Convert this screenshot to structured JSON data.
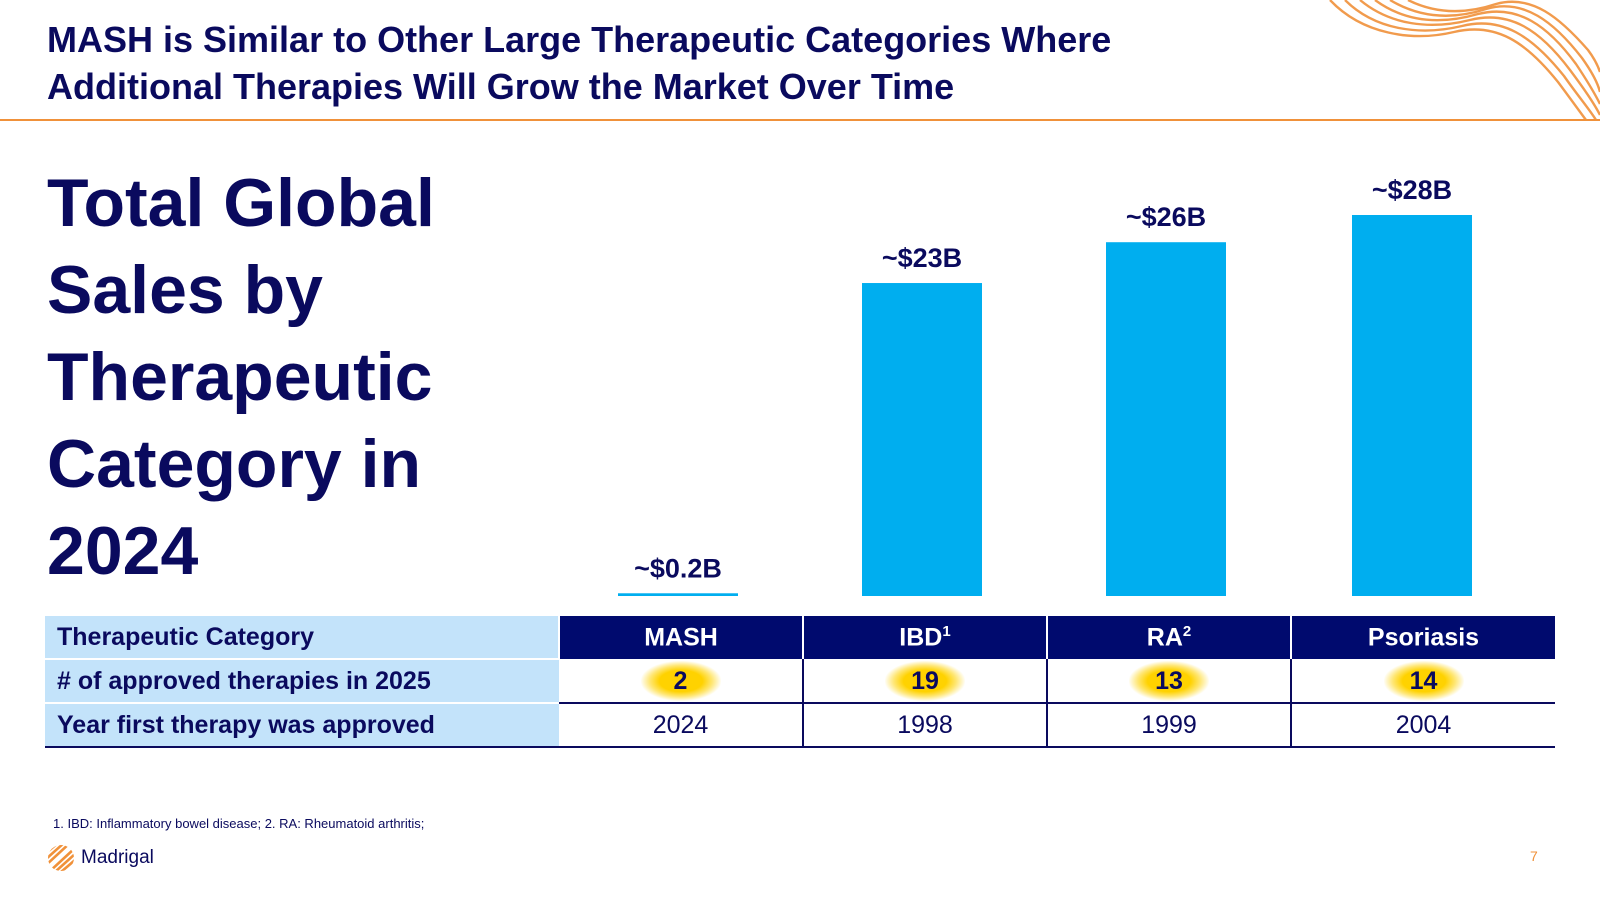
{
  "header": {
    "title": "MASH is Similar to Other Large Therapeutic Categories Where Additional Therapies Will Grow the Market Over Time"
  },
  "main_title": "Total Global Sales by Therapeutic Category in 2024",
  "chart_data": {
    "type": "bar",
    "title": "Total Global Sales by Therapeutic Category in 2024",
    "categories": [
      "MASH",
      "IBD",
      "RA",
      "Psoriasis"
    ],
    "values": [
      0.2,
      23,
      26,
      28
    ],
    "data_labels": [
      "~$0.2B",
      "~$23B",
      "~$26B",
      "~$28B"
    ],
    "unit": "$B",
    "ylim": [
      0,
      28
    ],
    "grid": false,
    "bar_color": "#00aeef"
  },
  "table": {
    "header_label": "Therapeutic Category",
    "columns": [
      {
        "name": "MASH",
        "sup": ""
      },
      {
        "name": "IBD",
        "sup": "1"
      },
      {
        "name": "RA",
        "sup": "2"
      },
      {
        "name": "Psoriasis",
        "sup": ""
      }
    ],
    "rows": [
      {
        "label": "# of approved therapies in 2025",
        "values": [
          "2",
          "19",
          "13",
          "14"
        ]
      },
      {
        "label": "Year first therapy was approved",
        "values": [
          "2024",
          "1998",
          "1999",
          "2004"
        ]
      }
    ]
  },
  "footnote": "1. IBD: Inflammatory bowel disease; 2. RA: Rheumatoid arthritis;",
  "logo_text": "Madrigal",
  "page_number": "7",
  "colors": {
    "navy": "#0a0a5e",
    "header_navy": "#000a6e",
    "bar_blue": "#00aeef",
    "light_blue": "#c3e3fa",
    "orange": "#f0913a",
    "highlight_yellow": "#ffd200"
  }
}
